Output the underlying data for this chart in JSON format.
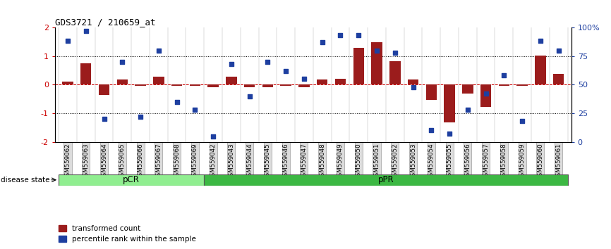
{
  "title": "GDS3721 / 210659_at",
  "samples": [
    "GSM559062",
    "GSM559063",
    "GSM559064",
    "GSM559065",
    "GSM559066",
    "GSM559067",
    "GSM559068",
    "GSM559069",
    "GSM559042",
    "GSM559043",
    "GSM559044",
    "GSM559045",
    "GSM559046",
    "GSM559047",
    "GSM559048",
    "GSM559049",
    "GSM559050",
    "GSM559051",
    "GSM559052",
    "GSM559053",
    "GSM559054",
    "GSM559055",
    "GSM559056",
    "GSM559057",
    "GSM559058",
    "GSM559059",
    "GSM559060",
    "GSM559061"
  ],
  "transformed_count": [
    0.1,
    0.75,
    -0.35,
    0.18,
    -0.05,
    0.28,
    -0.05,
    -0.05,
    -0.08,
    0.28,
    -0.1,
    -0.08,
    -0.05,
    -0.08,
    0.18,
    0.2,
    1.28,
    1.48,
    0.82,
    0.18,
    -0.52,
    -1.32,
    -0.32,
    -0.78,
    -0.05,
    -0.05,
    1.02,
    0.38
  ],
  "percentile_rank": [
    88,
    97,
    20,
    70,
    22,
    80,
    35,
    28,
    5,
    68,
    40,
    70,
    62,
    55,
    87,
    93,
    93,
    80,
    78,
    48,
    10,
    7,
    28,
    42,
    58,
    18,
    88,
    80
  ],
  "pCR_count": 8,
  "pPR_count": 20,
  "bar_color": "#9B1C1C",
  "dot_color": "#1E3FA0",
  "ylim_left": [
    -2,
    2
  ],
  "ylim_right": [
    0,
    100
  ],
  "yticks_left": [
    -2,
    -1,
    0,
    1,
    2
  ],
  "yticks_right": [
    0,
    25,
    50,
    75,
    100
  ],
  "yticklabels_right": [
    "0",
    "25",
    "50",
    "75",
    "100%"
  ],
  "pcr_color_light": "#b8f0b8",
  "pcr_color": "#90EE90",
  "ppr_color": "#3CB843",
  "pcr_label": "pCR",
  "ppr_label": "pPR",
  "legend_transformed": "transformed count",
  "legend_percentile": "percentile rank within the sample",
  "disease_state_label": "disease state"
}
